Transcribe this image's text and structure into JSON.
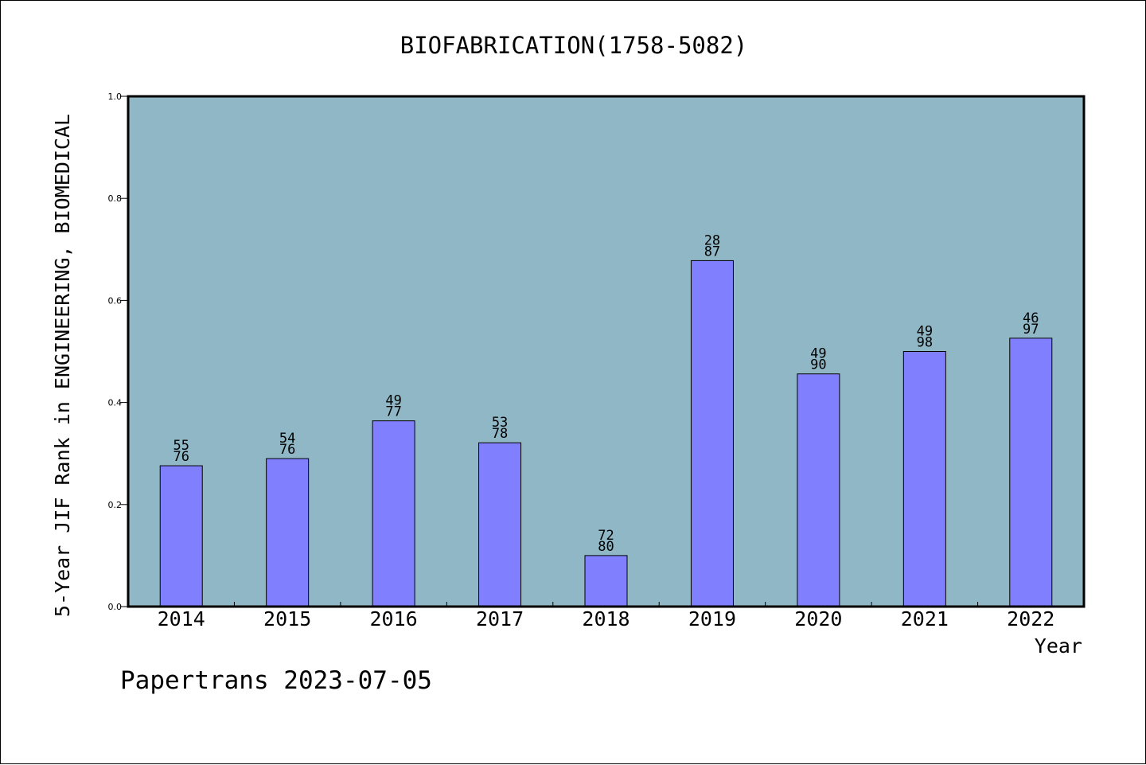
{
  "chart_data": {
    "type": "bar",
    "title": "BIOFABRICATION(1758-5082)",
    "xlabel": "Year",
    "ylabel": "5-Year JIF Rank in ENGINEERING, BIOMEDICAL",
    "ylim": [
      0.0,
      1.0
    ],
    "yticks": [
      "0.0",
      "0.2",
      "0.4",
      "0.6",
      "0.8",
      "1.0"
    ],
    "ytick_values": [
      0.0,
      0.2,
      0.4,
      0.6,
      0.8,
      1.0
    ],
    "grid": false,
    "legend": "none",
    "categories": [
      "2014",
      "2015",
      "2016",
      "2017",
      "2018",
      "2019",
      "2020",
      "2021",
      "2022"
    ],
    "series": [
      {
        "values": [
          0.276,
          0.29,
          0.364,
          0.321,
          0.1,
          0.678,
          0.456,
          0.5,
          0.526
        ],
        "labels_top": [
          "55",
          "54",
          "49",
          "53",
          "72",
          "28",
          "49",
          "49",
          "46"
        ],
        "labels_bottom": [
          "76",
          "76",
          "77",
          "78",
          "80",
          "87",
          "90",
          "98",
          "97"
        ]
      }
    ],
    "colors": {
      "plot_background": "#8fb7c5",
      "bar_fill": "#8080ff",
      "bar_stroke": "#000000"
    }
  },
  "footer": {
    "text": "Papertrans 2023-07-05"
  }
}
